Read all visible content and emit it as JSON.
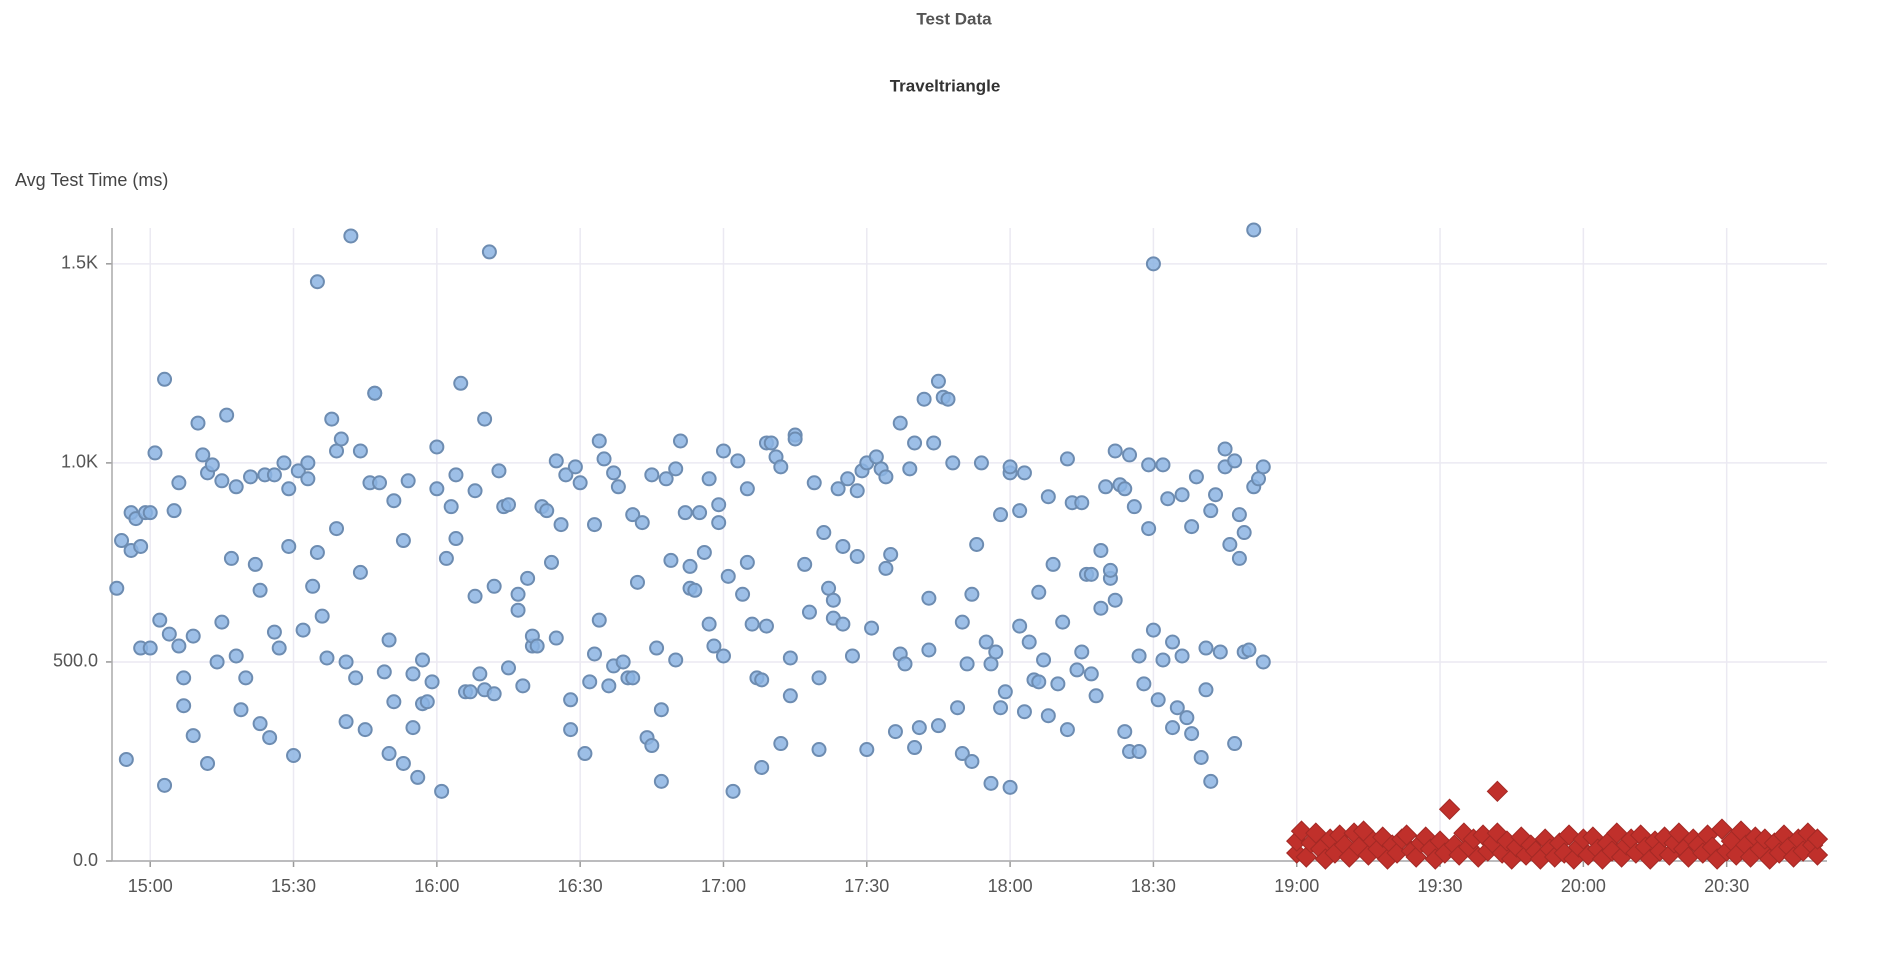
{
  "chart_data": {
    "type": "scatter",
    "title": "Test Data",
    "subtitle": "Traveltriangle",
    "y_label": "Avg Test Time (ms)",
    "xlim": [
      "14:52",
      "20:51"
    ],
    "xticks": [
      "15:00",
      "15:30",
      "16:00",
      "16:30",
      "17:00",
      "17:30",
      "18:00",
      "18:30",
      "19:00",
      "19:30",
      "20:00",
      "20:30"
    ],
    "ylim": [
      0,
      1590
    ],
    "yticks": [
      {
        "value": 0,
        "label": "0.0"
      },
      {
        "value": 500,
        "label": "500.0"
      },
      {
        "value": 1000,
        "label": "1.0K"
      },
      {
        "value": 1500,
        "label": "1.5K"
      }
    ],
    "grid": true,
    "series": [
      {
        "color": "#8cb4e3",
        "marker": "circle",
        "x": [
          "14:53",
          "14:54",
          "14:55",
          "14:56",
          "14:56",
          "14:57",
          "14:58",
          "14:58",
          "14:59",
          "15:00",
          "15:00",
          "15:01",
          "15:02",
          "15:03",
          "15:03",
          "15:04",
          "15:05",
          "15:06",
          "15:06",
          "15:07",
          "15:07",
          "15:09",
          "15:09",
          "15:10",
          "15:11",
          "15:12",
          "15:12",
          "15:13",
          "15:14",
          "15:15",
          "15:15",
          "15:16",
          "15:17",
          "15:18",
          "15:18",
          "15:19",
          "15:20",
          "15:21",
          "15:22",
          "15:23",
          "15:23",
          "15:24",
          "15:25",
          "15:26",
          "15:26",
          "15:27",
          "15:28",
          "15:29",
          "15:29",
          "15:30",
          "15:31",
          "15:32",
          "15:33",
          "15:33",
          "15:34",
          "15:35",
          "15:35",
          "15:36",
          "15:37",
          "15:38",
          "15:39",
          "15:39",
          "15:40",
          "15:41",
          "15:41",
          "15:42",
          "15:43",
          "15:44",
          "15:44",
          "15:45",
          "15:46",
          "15:47",
          "15:47",
          "15:48",
          "15:49",
          "15:50",
          "15:50",
          "15:51",
          "15:51",
          "15:53",
          "15:53",
          "15:54",
          "15:55",
          "15:55",
          "15:56",
          "15:57",
          "15:57",
          "15:58",
          "15:59",
          "16:00",
          "16:00",
          "16:01",
          "16:02",
          "16:03",
          "16:04",
          "16:04",
          "16:05",
          "16:06",
          "16:07",
          "16:08",
          "16:08",
          "16:09",
          "16:10",
          "16:10",
          "16:11",
          "16:12",
          "16:12",
          "16:13",
          "16:14",
          "16:15",
          "16:15",
          "16:17",
          "16:17",
          "16:18",
          "16:19",
          "16:20",
          "16:20",
          "16:21",
          "16:22",
          "16:23",
          "16:24",
          "16:25",
          "16:25",
          "16:26",
          "16:27",
          "16:28",
          "16:28",
          "16:29",
          "16:30",
          "16:31",
          "16:32",
          "16:33",
          "16:33",
          "16:34",
          "16:34",
          "16:35",
          "16:36",
          "16:37",
          "16:37",
          "16:38",
          "16:39",
          "16:40",
          "16:41",
          "16:41",
          "16:42",
          "16:43",
          "16:44",
          "16:45",
          "16:45",
          "16:46",
          "16:47",
          "16:47",
          "16:48",
          "16:49",
          "16:50",
          "16:50",
          "16:51",
          "16:52",
          "16:53",
          "16:53",
          "16:54",
          "16:55",
          "16:56",
          "16:57",
          "16:57",
          "16:58",
          "16:59",
          "16:59",
          "17:00",
          "17:00",
          "17:01",
          "17:02",
          "17:03",
          "17:04",
          "17:05",
          "17:05",
          "17:06",
          "17:07",
          "17:08",
          "17:08",
          "17:09",
          "17:09",
          "17:10",
          "17:11",
          "17:12",
          "17:12",
          "17:14",
          "17:14",
          "17:15",
          "17:15",
          "17:17",
          "17:18",
          "17:19",
          "17:20",
          "17:20",
          "17:21",
          "17:22",
          "17:23",
          "17:23",
          "17:24",
          "17:25",
          "17:25",
          "17:26",
          "17:27",
          "17:28",
          "17:28",
          "17:29",
          "17:30",
          "17:30",
          "17:31",
          "17:32",
          "17:33",
          "17:34",
          "17:34",
          "17:35",
          "17:36",
          "17:37",
          "17:37",
          "17:38",
          "17:39",
          "17:40",
          "17:40",
          "17:41",
          "17:42",
          "17:43",
          "17:43",
          "17:44",
          "17:45",
          "17:45",
          "17:46",
          "17:47",
          "17:48",
          "17:49",
          "17:50",
          "17:50",
          "17:51",
          "17:52",
          "17:52",
          "17:53",
          "17:54",
          "17:55",
          "17:56",
          "17:56",
          "17:57",
          "17:58",
          "17:58",
          "17:59",
          "18:00",
          "18:00",
          "18:00",
          "18:02",
          "18:02",
          "18:03",
          "18:03",
          "18:04",
          "18:05",
          "18:06",
          "18:06",
          "18:07",
          "18:08",
          "18:08",
          "18:09",
          "18:10",
          "18:11",
          "18:12",
          "18:12",
          "18:13",
          "18:14",
          "18:15",
          "18:15",
          "18:16",
          "18:17",
          "18:17",
          "18:18",
          "18:19",
          "18:19",
          "18:20",
          "18:21",
          "18:21",
          "18:22",
          "18:22",
          "18:23",
          "18:24",
          "18:24",
          "18:25",
          "18:25",
          "18:26",
          "18:27",
          "18:27",
          "18:28",
          "18:29",
          "18:29",
          "18:30",
          "18:30",
          "18:31",
          "18:32",
          "18:32",
          "18:33",
          "18:34",
          "18:34",
          "18:35",
          "18:36",
          "18:36",
          "18:37",
          "18:38",
          "18:38",
          "18:39",
          "18:40",
          "18:41",
          "18:41",
          "18:42",
          "18:42",
          "18:43",
          "18:44",
          "18:45",
          "18:45",
          "18:46",
          "18:47",
          "18:47",
          "18:48",
          "18:48",
          "18:49",
          "18:49",
          "18:50",
          "18:51",
          "18:51",
          "18:52",
          "18:53",
          "18:53"
        ],
        "values": [
          685,
          805,
          255,
          875,
          780,
          860,
          790,
          535,
          875,
          875,
          535,
          1025,
          605,
          190,
          1210,
          570,
          880,
          950,
          540,
          460,
          390,
          315,
          565,
          1100,
          1020,
          975,
          245,
          995,
          500,
          600,
          955,
          1120,
          760,
          515,
          940,
          380,
          460,
          965,
          745,
          680,
          345,
          970,
          310,
          575,
          970,
          535,
          1000,
          790,
          935,
          265,
          980,
          580,
          1000,
          960,
          690,
          1455,
          775,
          615,
          510,
          1110,
          835,
          1030,
          1060,
          500,
          350,
          1570,
          460,
          725,
          1030,
          330,
          950,
          1175,
          1175,
          950,
          475,
          270,
          555,
          400,
          905,
          245,
          805,
          955,
          335,
          470,
          210,
          395,
          505,
          400,
          450,
          1040,
          935,
          175,
          760,
          890,
          970,
          810,
          1200,
          425,
          425,
          665,
          930,
          470,
          430,
          1110,
          1530,
          690,
          420,
          980,
          890,
          485,
          895,
          670,
          630,
          440,
          710,
          540,
          565,
          540,
          890,
          880,
          750,
          1005,
          560,
          845,
          970,
          330,
          405,
          990,
          950,
          270,
          450,
          845,
          520,
          1055,
          605,
          1010,
          440,
          975,
          490,
          940,
          500,
          460,
          460,
          870,
          700,
          850,
          310,
          290,
          970,
          535,
          380,
          200,
          960,
          755,
          505,
          985,
          1055,
          875,
          685,
          740,
          680,
          875,
          775,
          960,
          595,
          540,
          850,
          895,
          515,
          1030,
          715,
          175,
          1005,
          670,
          935,
          750,
          595,
          460,
          455,
          235,
          590,
          1050,
          1050,
          1015,
          295,
          990,
          510,
          415,
          1070,
          1060,
          745,
          625,
          950,
          460,
          280,
          825,
          685,
          655,
          610,
          935,
          790,
          595,
          960,
          515,
          930,
          765,
          980,
          280,
          1000,
          585,
          1015,
          985,
          735,
          965,
          770,
          325,
          1100,
          520,
          495,
          985,
          1050,
          285,
          335,
          1160,
          530,
          660,
          1050,
          340,
          1205,
          1165,
          1160,
          1000,
          385,
          270,
          600,
          495,
          670,
          250,
          795,
          1000,
          550,
          495,
          195,
          525,
          870,
          385,
          425,
          975,
          990,
          185,
          590,
          880,
          975,
          375,
          550,
          455,
          450,
          675,
          505,
          915,
          365,
          745,
          445,
          600,
          1010,
          330,
          900,
          480,
          900,
          525,
          720,
          470,
          720,
          415,
          780,
          635,
          940,
          710,
          730,
          1030,
          655,
          945,
          935,
          325,
          275,
          1020,
          890,
          275,
          515,
          445,
          835,
          995,
          580,
          1500,
          405,
          995,
          505,
          910,
          335,
          550,
          385,
          515,
          920,
          360,
          840,
          320,
          965,
          260,
          430,
          535,
          200,
          880,
          920,
          525,
          990,
          1035,
          795,
          1005,
          295,
          870,
          760,
          825,
          525,
          530,
          940,
          1585,
          960,
          500,
          990
        ]
      },
      {
        "color": "#c0302b",
        "marker": "diamond",
        "x": [
          "19:00",
          "19:00",
          "19:01",
          "19:02",
          "19:03",
          "19:04",
          "19:05",
          "19:06",
          "19:07",
          "19:08",
          "19:09",
          "19:10",
          "19:11",
          "19:12",
          "19:13",
          "19:14",
          "19:15",
          "19:16",
          "19:17",
          "19:18",
          "19:19",
          "19:20",
          "19:21",
          "19:22",
          "19:23",
          "19:24",
          "19:25",
          "19:26",
          "19:27",
          "19:28",
          "19:29",
          "19:30",
          "19:31",
          "19:32",
          "19:33",
          "19:34",
          "19:35",
          "19:36",
          "19:37",
          "19:38",
          "19:39",
          "19:40",
          "19:41",
          "19:42",
          "19:42",
          "19:43",
          "19:44",
          "19:45",
          "19:46",
          "19:47",
          "19:48",
          "19:49",
          "19:50",
          "19:51",
          "19:52",
          "19:53",
          "19:54",
          "19:55",
          "19:56",
          "19:57",
          "19:58",
          "19:59",
          "20:00",
          "20:01",
          "20:02",
          "20:03",
          "20:04",
          "20:05",
          "20:06",
          "20:07",
          "20:08",
          "20:09",
          "20:10",
          "20:11",
          "20:12",
          "20:13",
          "20:14",
          "20:15",
          "20:16",
          "20:17",
          "20:18",
          "20:19",
          "20:20",
          "20:21",
          "20:22",
          "20:23",
          "20:24",
          "20:25",
          "20:26",
          "20:27",
          "20:28",
          "20:29",
          "20:30",
          "20:31",
          "20:32",
          "20:33",
          "20:34",
          "20:35",
          "20:36",
          "20:37",
          "20:38",
          "20:39",
          "20:40",
          "20:41",
          "20:42",
          "20:43",
          "20:44",
          "20:45",
          "20:46",
          "20:47",
          "20:48",
          "20:49",
          "20:49"
        ],
        "values": [
          20,
          50,
          75,
          10,
          45,
          70,
          30,
          5,
          55,
          20,
          65,
          40,
          10,
          70,
          35,
          75,
          15,
          50,
          30,
          60,
          5,
          40,
          20,
          55,
          65,
          25,
          10,
          45,
          60,
          30,
          5,
          50,
          20,
          130,
          40,
          15,
          70,
          35,
          55,
          10,
          65,
          25,
          45,
          175,
          70,
          20,
          50,
          5,
          35,
          60,
          15,
          40,
          25,
          5,
          55,
          30,
          10,
          45,
          20,
          65,
          5,
          35,
          55,
          15,
          60,
          30,
          5,
          45,
          25,
          70,
          10,
          40,
          55,
          20,
          65,
          35,
          5,
          50,
          25,
          60,
          15,
          45,
          70,
          30,
          10,
          55,
          40,
          20,
          65,
          35,
          5,
          80,
          25,
          50,
          15,
          75,
          40,
          10,
          60,
          30,
          55,
          5,
          45,
          20,
          65,
          35,
          10,
          55,
          25,
          70,
          40,
          15,
          55
        ]
      }
    ]
  }
}
